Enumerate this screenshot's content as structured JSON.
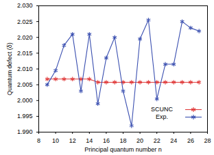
{
  "chart_data": {
    "type": "line",
    "x_label": "Principal quantum number n",
    "y_label": "Quantum defect (δ)",
    "xlim": [
      8,
      28
    ],
    "xticks": [
      8,
      10,
      12,
      14,
      16,
      18,
      20,
      22,
      24,
      26,
      28
    ],
    "ylim": [
      1.99,
      2.03
    ],
    "yticks": [
      {
        "value": 1.99,
        "label": "1.990"
      },
      {
        "value": 1.995,
        "label": "1.995"
      },
      {
        "value": 2.0,
        "label": "2.000"
      },
      {
        "value": 2.005,
        "label": "2.005"
      },
      {
        "value": 2.01,
        "label": "2.010"
      },
      {
        "value": 2.015,
        "label": "2.015"
      },
      {
        "value": 2.02,
        "label": "2.020"
      },
      {
        "value": 2.025,
        "label": "2.025"
      },
      {
        "value": 2.03,
        "label": "2.030"
      }
    ],
    "grid": false,
    "legend": "lower right",
    "x": [
      9,
      10,
      11,
      12,
      13,
      14,
      15,
      16,
      17,
      18,
      19,
      20,
      21,
      22,
      23,
      24,
      25,
      26,
      27
    ],
    "series": [
      {
        "name": "SCUNC",
        "color": "#e03a3a",
        "marker": "asterisk",
        "line_style": "solid",
        "values": [
          2.0068,
          2.0068,
          2.0068,
          2.0068,
          2.0068,
          2.0068,
          2.0058,
          2.0058,
          2.0058,
          2.0058,
          2.0058,
          2.0058,
          2.0058,
          2.0058,
          2.0058,
          2.0058,
          2.0058,
          2.0058,
          2.0058
        ]
      },
      {
        "name": "Exp.",
        "color": "#3a4fb0",
        "marker": "asterisk",
        "line_style": "solid",
        "values": [
          2.005,
          2.0095,
          2.0175,
          2.021,
          2.003,
          2.021,
          1.999,
          2.0135,
          2.02,
          2.003,
          1.992,
          2.0195,
          2.0255,
          2.0005,
          2.0115,
          2.0115,
          2.025,
          2.023,
          2.022
        ]
      }
    ]
  }
}
